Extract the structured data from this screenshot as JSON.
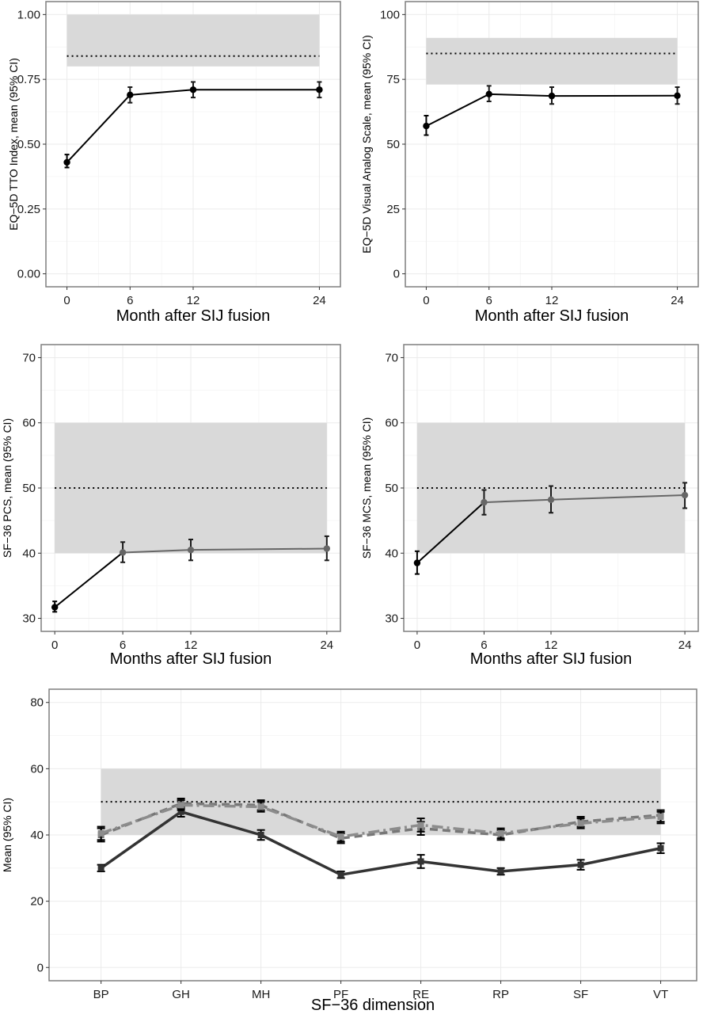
{
  "chart_data": [
    {
      "id": "eq5d-tto",
      "type": "line",
      "ylabel": "EQ−5D TTO Index, mean (95% CI)",
      "xlabel": "Month after SIJ fusion",
      "x": [
        0,
        6,
        12,
        24
      ],
      "xlim": [
        -2,
        26
      ],
      "ylim": [
        -0.05,
        1.05
      ],
      "yticks": [
        0.0,
        0.25,
        0.5,
        0.75,
        1.0
      ],
      "ytick_labels": [
        "0.00",
        "0.25",
        "0.50",
        "0.75",
        "1.00"
      ],
      "xticks": [
        0,
        6,
        12,
        24
      ],
      "xtick_labels": [
        "0",
        "6",
        "12",
        "24"
      ],
      "reference_band": [
        0.8,
        1.0
      ],
      "reference_line": 0.84,
      "series": [
        {
          "values": [
            0.43,
            0.69,
            0.71,
            0.71
          ],
          "ci_low": [
            0.41,
            0.66,
            0.68,
            0.68
          ],
          "ci_high": [
            0.46,
            0.72,
            0.74,
            0.74
          ],
          "color": "#000000",
          "segment_colors": [
            "#000000",
            "#000000",
            "#000000"
          ]
        }
      ],
      "grid": true
    },
    {
      "id": "eq5d-vas",
      "type": "line",
      "ylabel": "EQ−5D Visual Analog Scale, mean (95% CI)",
      "xlabel": "Month after SIJ fusion",
      "x": [
        0,
        6,
        12,
        24
      ],
      "xlim": [
        -2,
        26
      ],
      "ylim": [
        -5,
        105
      ],
      "yticks": [
        0,
        25,
        50,
        75,
        100
      ],
      "ytick_labels": [
        "0",
        "25",
        "50",
        "75",
        "100"
      ],
      "xticks": [
        0,
        6,
        12,
        24
      ],
      "xtick_labels": [
        "0",
        "6",
        "12",
        "24"
      ],
      "reference_band": [
        73,
        91
      ],
      "reference_line": 85,
      "series": [
        {
          "values": [
            57,
            69.3,
            68.6,
            68.7
          ],
          "ci_low": [
            53.5,
            66.5,
            65.5,
            65.5
          ],
          "ci_high": [
            61,
            72.5,
            72,
            72
          ],
          "color": "#000000",
          "segment_colors": [
            "#000000",
            "#000000",
            "#000000"
          ]
        }
      ],
      "grid": true
    },
    {
      "id": "sf36-pcs",
      "type": "line",
      "ylabel": "SF−36 PCS, mean (95% CI)",
      "xlabel": "Months after SIJ fusion",
      "x": [
        0,
        6,
        12,
        24
      ],
      "xlim": [
        -1.2,
        25.2
      ],
      "ylim": [
        28,
        72
      ],
      "yticks": [
        30,
        40,
        50,
        60,
        70
      ],
      "ytick_labels": [
        "30",
        "40",
        "50",
        "60",
        "70"
      ],
      "xticks": [
        0,
        6,
        12,
        24
      ],
      "xtick_labels": [
        "0",
        "6",
        "12",
        "24"
      ],
      "reference_band": [
        40,
        60
      ],
      "reference_line": 50,
      "series": [
        {
          "values": [
            31.7,
            40.1,
            40.5,
            40.7
          ],
          "ci_low": [
            31,
            38.6,
            38.9,
            38.9
          ],
          "ci_high": [
            32.6,
            41.7,
            42.1,
            42.6
          ],
          "color": "#000000",
          "segment_colors": [
            "#000000",
            "#666666",
            "#666666"
          ]
        }
      ],
      "grid": true
    },
    {
      "id": "sf36-mcs",
      "type": "line",
      "ylabel": "SF−36 MCS, mean (95% CI)",
      "xlabel": "Months after SIJ fusion",
      "x": [
        0,
        6,
        12,
        24
      ],
      "xlim": [
        -1.2,
        25.2
      ],
      "ylim": [
        28,
        72
      ],
      "yticks": [
        30,
        40,
        50,
        60,
        70
      ],
      "ytick_labels": [
        "30",
        "40",
        "50",
        "60",
        "70"
      ],
      "xticks": [
        0,
        6,
        12,
        24
      ],
      "xtick_labels": [
        "0",
        "6",
        "12",
        "24"
      ],
      "reference_band": [
        40,
        60
      ],
      "reference_line": 50,
      "series": [
        {
          "values": [
            38.5,
            47.8,
            48.2,
            48.9
          ],
          "ci_low": [
            36.8,
            45.9,
            46.2,
            46.9
          ],
          "ci_high": [
            40.3,
            49.7,
            50.3,
            50.8
          ],
          "color": "#000000",
          "segment_colors": [
            "#000000",
            "#666666",
            "#666666"
          ]
        }
      ],
      "grid": true
    },
    {
      "id": "sf36-dimensions",
      "type": "line",
      "ylabel": "Mean (95% CI)",
      "xlabel": "SF−36 dimension",
      "categories": [
        "BP",
        "GH",
        "MH",
        "PF",
        "RE",
        "RP",
        "SF",
        "VT"
      ],
      "xlim": [
        -0.65,
        7.45
      ],
      "ylim": [
        -4,
        84
      ],
      "yticks": [
        0,
        20,
        40,
        60,
        80
      ],
      "ytick_labels": [
        "0",
        "20",
        "40",
        "60",
        "80"
      ],
      "reference_band": [
        40,
        60
      ],
      "reference_line": 50,
      "series": [
        {
          "values": [
            30,
            47,
            40,
            28,
            32,
            29,
            31,
            36
          ],
          "ci_low": [
            29,
            45.5,
            38.5,
            27,
            30,
            28,
            29.5,
            34.5
          ],
          "ci_high": [
            31,
            48.5,
            41.5,
            29,
            34,
            30,
            32.5,
            37.5
          ],
          "color": "#333333",
          "style": "solid"
        },
        {
          "values": [
            40,
            49.5,
            49,
            39,
            42,
            40,
            44,
            46
          ],
          "ci_low": [
            38,
            48,
            47.5,
            37.5,
            40,
            38.5,
            42.5,
            44
          ],
          "ci_high": [
            42,
            51,
            50.5,
            40.5,
            44,
            41.5,
            45.5,
            47.5
          ],
          "color": "#777777",
          "style": "dashed"
        },
        {
          "values": [
            40.5,
            49,
            48.5,
            39.5,
            43,
            40.5,
            43.5,
            45.5
          ],
          "ci_low": [
            38.5,
            47.5,
            47,
            38,
            41,
            39,
            42,
            43.5
          ],
          "ci_high": [
            42.5,
            50.5,
            50,
            41,
            45,
            42,
            45,
            47
          ],
          "color": "#8c8c8c",
          "style": "dotdash"
        }
      ],
      "grid": true
    }
  ]
}
